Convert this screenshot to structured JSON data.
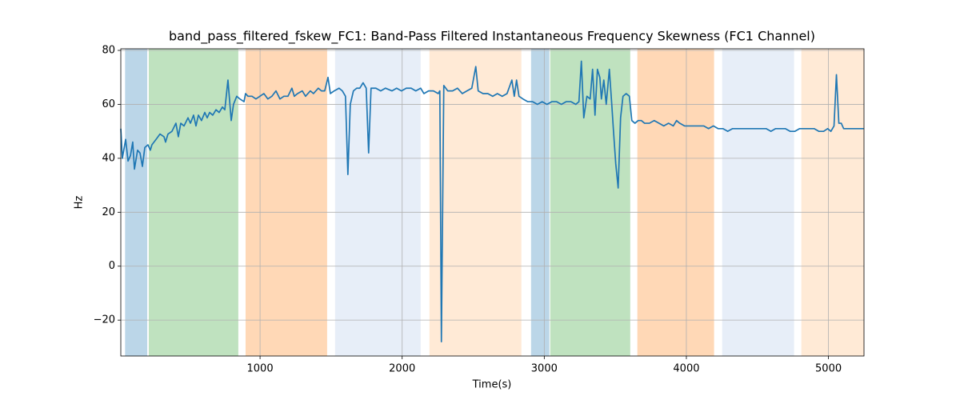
{
  "chart_data": {
    "type": "line",
    "title": "band_pass_filtered_fskew_FC1: Band-Pass Filtered Instantaneous Frequency Skewness (FC1 Channel)",
    "xlabel": "Time(s)",
    "ylabel": "Hz",
    "color": "#1f77b4",
    "grid": true,
    "xlim": [
      20,
      5250
    ],
    "ylim": [
      -33.3,
      80.6
    ],
    "xticks": [
      1000,
      2000,
      3000,
      4000,
      5000
    ],
    "yticks": [
      {
        "value": -20,
        "label": "−20"
      },
      0,
      20,
      40,
      60,
      80
    ],
    "span_alpha": 0.3,
    "spans": [
      {
        "start": 50,
        "end": 206,
        "color": "#1f77b4"
      },
      {
        "start": 217,
        "end": 847,
        "color": "#2ca02c"
      },
      {
        "start": 898,
        "end": 1472,
        "color": "#ff7f0e"
      },
      {
        "start": 1528,
        "end": 2130,
        "color": "#aec7e8"
      },
      {
        "start": 2192,
        "end": 2839,
        "color": "#ffbb78"
      },
      {
        "start": 2907,
        "end": 3036,
        "color": "#1f77b4"
      },
      {
        "start": 3042,
        "end": 3605,
        "color": "#2ca02c"
      },
      {
        "start": 3655,
        "end": 4195,
        "color": "#ff7f0e"
      },
      {
        "start": 4252,
        "end": 4758,
        "color": "#aec7e8"
      },
      {
        "start": 4809,
        "end": 5250,
        "color": "#ffbb78"
      }
    ],
    "x": [
      20,
      31,
      54,
      71,
      88,
      104,
      116,
      138,
      155,
      172,
      189,
      211,
      228,
      239,
      268,
      296,
      324,
      335,
      352,
      380,
      408,
      425,
      442,
      465,
      493,
      510,
      532,
      549,
      566,
      588,
      611,
      628,
      645,
      667,
      690,
      712,
      735,
      752,
      774,
      797,
      813,
      836,
      858,
      887,
      898,
      915,
      943,
      971,
      999,
      1027,
      1055,
      1083,
      1112,
      1140,
      1168,
      1196,
      1224,
      1241,
      1264,
      1297,
      1320,
      1354,
      1376,
      1410,
      1432,
      1455,
      1478,
      1495,
      1522,
      1556,
      1579,
      1601,
      1618,
      1635,
      1657,
      1680,
      1702,
      1725,
      1747,
      1764,
      1781,
      1815,
      1849,
      1882,
      1928,
      1961,
      1995,
      2029,
      2063,
      2096,
      2130,
      2153,
      2186,
      2220,
      2254,
      2265,
      2276,
      2293,
      2321,
      2355,
      2389,
      2423,
      2456,
      2490,
      2518,
      2535,
      2569,
      2603,
      2637,
      2670,
      2704,
      2738,
      2772,
      2789,
      2805,
      2822,
      2850,
      2884,
      2918,
      2952,
      2985,
      3019,
      3053,
      3087,
      3120,
      3154,
      3188,
      3222,
      3244,
      3261,
      3278,
      3300,
      3323,
      3340,
      3357,
      3374,
      3391,
      3402,
      3419,
      3436,
      3458,
      3475,
      3486,
      3503,
      3520,
      3537,
      3554,
      3576,
      3599,
      3616,
      3638,
      3661,
      3683,
      3706,
      3740,
      3773,
      3807,
      3841,
      3875,
      3908,
      3931,
      3953,
      3987,
      4021,
      4055,
      4088,
      4122,
      4156,
      4190,
      4223,
      4257,
      4291,
      4325,
      4358,
      4392,
      4426,
      4460,
      4493,
      4527,
      4561,
      4595,
      4628,
      4662,
      4696,
      4730,
      4764,
      4797,
      4831,
      4865,
      4899,
      4932,
      4966,
      4994,
      5017,
      5039,
      5056,
      5073,
      5090,
      5107,
      5135,
      5169,
      5203,
      5248
    ],
    "values": [
      51,
      40,
      47,
      39,
      41,
      46,
      36,
      43,
      42,
      37,
      44,
      45,
      43,
      45,
      47,
      49,
      48,
      46,
      49,
      50,
      53,
      48,
      53,
      52,
      55,
      53,
      56,
      52,
      56,
      54,
      57,
      55,
      57,
      56,
      58,
      57,
      59,
      58,
      69,
      54,
      60,
      63,
      62,
      61,
      64,
      63,
      63,
      62,
      63,
      64,
      62,
      63,
      65,
      62,
      63,
      63,
      66,
      63,
      64,
      65,
      63,
      65,
      64,
      66,
      65,
      65,
      70,
      64,
      65,
      66,
      65,
      63,
      34,
      60,
      65,
      66,
      66,
      68,
      66,
      42,
      66,
      66,
      65,
      66,
      65,
      66,
      65,
      66,
      66,
      65,
      66,
      64,
      65,
      65,
      64,
      65,
      -28,
      67,
      65,
      65,
      66,
      64,
      65,
      66,
      74,
      65,
      64,
      64,
      63,
      64,
      63,
      64,
      69,
      63,
      69,
      63,
      62,
      61,
      61,
      60,
      61,
      60,
      61,
      61,
      60,
      61,
      61,
      60,
      61,
      76,
      55,
      63,
      62,
      73,
      56,
      73,
      70,
      62,
      69,
      60,
      73,
      60,
      51,
      38,
      29,
      55,
      63,
      64,
      63,
      54,
      53,
      54,
      54,
      53,
      53,
      54,
      53,
      52,
      53,
      52,
      54,
      53,
      52,
      52,
      52,
      52,
      52,
      51,
      52,
      51,
      51,
      50,
      51,
      51,
      51,
      51,
      51,
      51,
      51,
      51,
      50,
      51,
      51,
      51,
      50,
      50,
      51,
      51,
      51,
      51,
      50,
      50,
      51,
      50,
      52,
      71,
      53,
      53,
      51,
      51,
      51,
      51,
      51
    ]
  }
}
